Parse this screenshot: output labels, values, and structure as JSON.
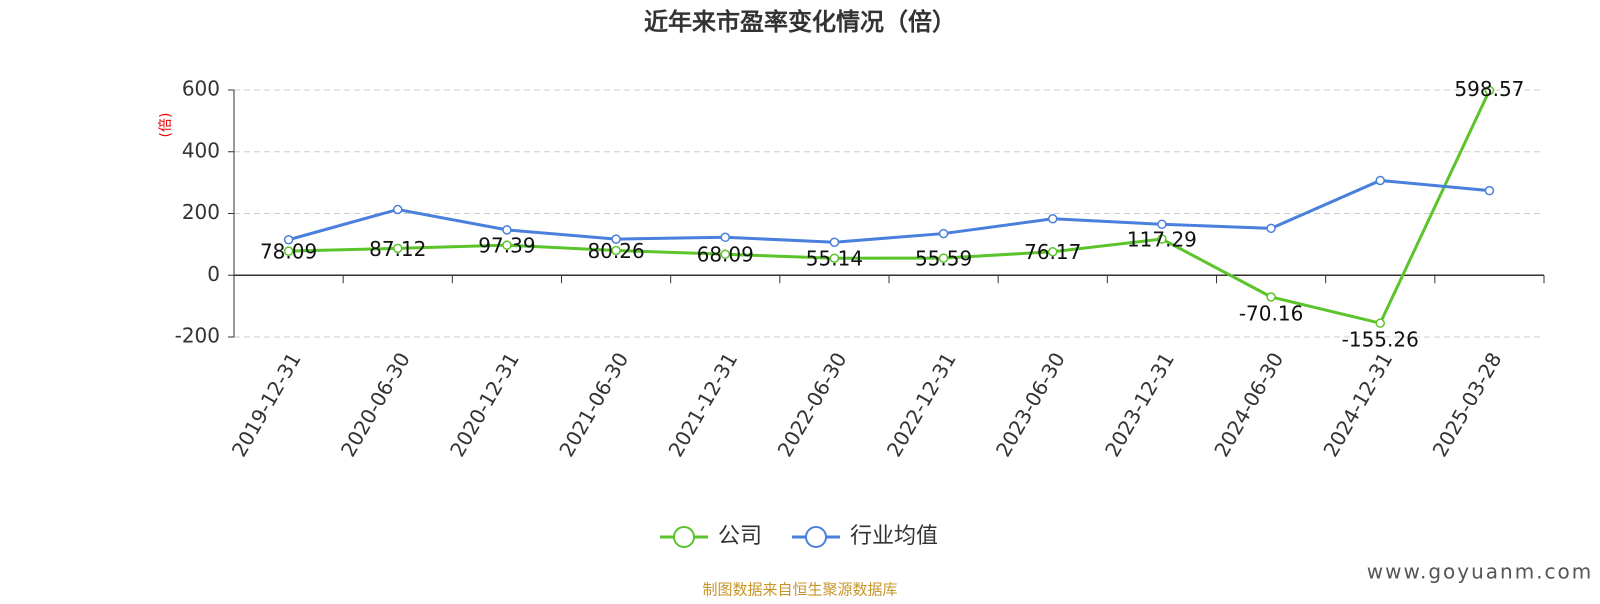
{
  "chart_data": {
    "type": "line",
    "title": "近年来市盈率变化情况（倍）",
    "y_label": "(倍)",
    "categories": [
      "2019-12-31",
      "2020-06-30",
      "2020-12-31",
      "2021-06-30",
      "2021-12-31",
      "2022-06-30",
      "2022-12-31",
      "2023-06-30",
      "2023-12-31",
      "2024-06-30",
      "2024-12-31",
      "2025-03-28"
    ],
    "series": [
      {
        "name": "公司",
        "color": "#5bc42b",
        "values": [
          78.09,
          87.12,
          97.39,
          80.26,
          68.09,
          55.14,
          55.59,
          76.17,
          117.29,
          -70.16,
          -155.26,
          598.57
        ]
      },
      {
        "name": "行业均值",
        "color": "#4a7fdd",
        "values": [
          115,
          213,
          147,
          117,
          123,
          107,
          135,
          183,
          165,
          152,
          307,
          274
        ]
      }
    ],
    "ylim": [
      -200,
      600
    ],
    "yticks": [
      -200,
      0,
      200,
      400,
      600
    ],
    "grid": true,
    "source": "制图数据来自恒生聚源数据库",
    "watermark": "www.goyuanm.com"
  }
}
